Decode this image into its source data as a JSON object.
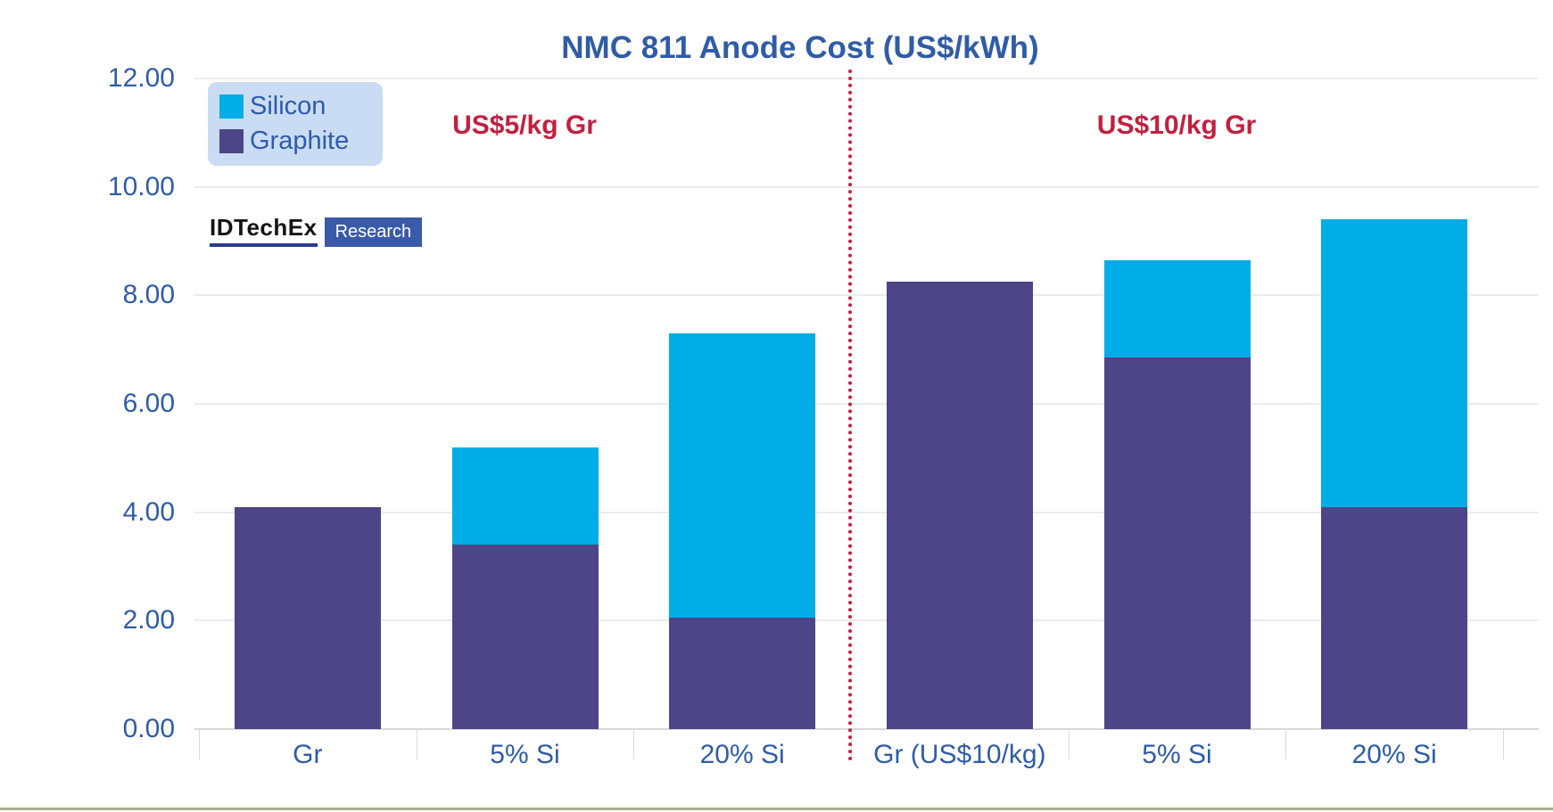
{
  "title": "NMC 811 Anode Cost (US$/kWh)",
  "logo": {
    "brand": "IDTechEx",
    "suffix": "Research"
  },
  "legend": {
    "background": "#C9DCF3",
    "items": [
      {
        "label": "Silicon",
        "color": "#00ADE6"
      },
      {
        "label": "Graphite",
        "color": "#4C4588"
      }
    ]
  },
  "annotations": {
    "left_region": "US$5/kg Gr",
    "right_region": "US$10/kg Gr",
    "text_color": "#C2203F",
    "divider_color": "#C2203F"
  },
  "colors": {
    "silicon": "#00ADE6",
    "graphite": "#4C4588",
    "axis_text": "#2F5CA8",
    "title_text": "#2F5CA8",
    "gridline": "#EBEBEB",
    "bottom_strip": "#A9AF8E"
  },
  "chart_data": {
    "type": "bar",
    "stacked": true,
    "title": "NMC 811 Anode Cost (US$/kWh)",
    "categories": [
      "Gr",
      "5% Si",
      "20% Si",
      "Gr (US$10/kg)",
      "5% Si",
      "20% Si"
    ],
    "series": [
      {
        "name": "Graphite",
        "color": "#4C4588",
        "values": [
          4.1,
          3.4,
          2.05,
          8.25,
          6.85,
          4.1
        ]
      },
      {
        "name": "Silicon",
        "color": "#00ADE6",
        "values": [
          0.0,
          1.8,
          5.25,
          0.0,
          1.8,
          5.3
        ]
      }
    ],
    "totals": [
      4.1,
      5.2,
      7.3,
      8.25,
      8.65,
      9.4
    ],
    "groups": [
      {
        "label": "US$5/kg Gr",
        "category_indexes": [
          0,
          1,
          2
        ]
      },
      {
        "label": "US$10/kg Gr",
        "category_indexes": [
          3,
          4,
          5
        ]
      }
    ],
    "ylim": [
      0,
      12
    ],
    "ytick_step": 2,
    "ytick_labels": [
      "0.00",
      "2.00",
      "4.00",
      "6.00",
      "8.00",
      "10.00",
      "12.00"
    ],
    "xlabel": "",
    "ylabel": "",
    "grid": true,
    "legend_position": "top-left"
  }
}
